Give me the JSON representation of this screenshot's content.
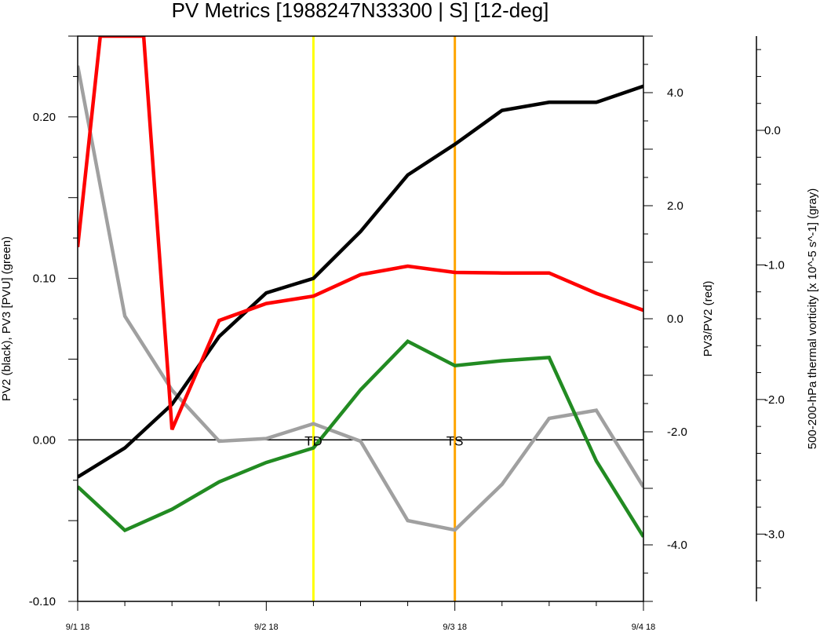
{
  "chart_data": {
    "type": "line",
    "title": "PV Metrics [1988247N33300 | S] [12-deg]",
    "x_tick_labels": [
      "9/1 18",
      "9/2 18",
      "9/3 18",
      "9/4 18"
    ],
    "x_ticks": [
      0,
      1,
      2,
      3
    ],
    "x_range": [
      0,
      3
    ],
    "axes": {
      "left": {
        "label": "PV2 (black), PV3 [PVU] (green)",
        "range": [
          -0.1,
          0.25
        ],
        "tick_labels": [
          "-0.10",
          "0.00",
          "0.10",
          "0.20"
        ],
        "ticks": [
          -0.1,
          0.0,
          0.1,
          0.2
        ]
      },
      "right": {
        "label": "PV3/PV2 (red)",
        "range": [
          -5.0,
          5.0
        ],
        "tick_labels": [
          "-4.0",
          "-2.0",
          "0.0",
          "2.0",
          "4.0"
        ],
        "ticks": [
          -4.0,
          -2.0,
          0.0,
          2.0,
          4.0
        ]
      },
      "far_right": {
        "label": "500-200-hPa thermal vorticity [x 10^-5 s^-1] (gray)",
        "range": [
          -3.5,
          0.7
        ],
        "tick_labels": [
          "-3.0",
          "-2.0",
          "-1.0",
          "0.0"
        ],
        "ticks": [
          -3.0,
          -2.0,
          -1.0,
          0.0
        ]
      }
    },
    "zero_line": 0.0,
    "vertical_lines": [
      {
        "x": 1.25,
        "color": "#ffff00",
        "label": "TD"
      },
      {
        "x": 2.0,
        "color": "#ffa500",
        "label": "TS"
      }
    ],
    "series": [
      {
        "axis": "left",
        "color": "#000000",
        "x": [
          0,
          0.25,
          0.5,
          0.75,
          1.0,
          1.25,
          1.5,
          1.75,
          2.0,
          2.25,
          2.5,
          2.75,
          3.0
        ],
        "y": [
          -0.023,
          -0.005,
          0.022,
          0.064,
          0.091,
          0.1,
          0.129,
          0.164,
          0.183,
          0.204,
          0.209,
          0.209,
          0.219
        ]
      },
      {
        "axis": "left",
        "color": "#228b22",
        "x": [
          0,
          0.25,
          0.5,
          0.75,
          1.0,
          1.25,
          1.5,
          1.75,
          2.0,
          2.25,
          2.5,
          2.75,
          3.0
        ],
        "y": [
          -0.029,
          -0.056,
          -0.043,
          -0.026,
          -0.014,
          -0.005,
          0.031,
          0.061,
          0.046,
          0.049,
          0.051,
          -0.013,
          -0.06
        ]
      },
      {
        "axis": "right",
        "color": "#ff0000",
        "x": [
          0,
          0.12,
          0.35,
          0.5,
          0.75,
          1.0,
          1.25,
          1.5,
          1.75,
          2.0,
          2.25,
          2.5,
          2.75,
          3.0
        ],
        "y": [
          1.27,
          5.0,
          5.0,
          -1.96,
          -0.03,
          0.27,
          0.4,
          0.78,
          0.93,
          0.82,
          0.81,
          0.81,
          0.45,
          0.15
        ]
      },
      {
        "axis": "far_right",
        "color": "#a0a0a0",
        "x": [
          0,
          0.25,
          0.5,
          0.75,
          1.0,
          1.25,
          1.5,
          1.75,
          2.0,
          2.25,
          2.5,
          2.75,
          3.0
        ],
        "y": [
          0.48,
          -1.38,
          -1.93,
          -2.31,
          -2.29,
          -2.18,
          -2.31,
          -2.9,
          -2.97,
          -2.63,
          -2.14,
          -2.08,
          -2.65
        ]
      }
    ]
  }
}
